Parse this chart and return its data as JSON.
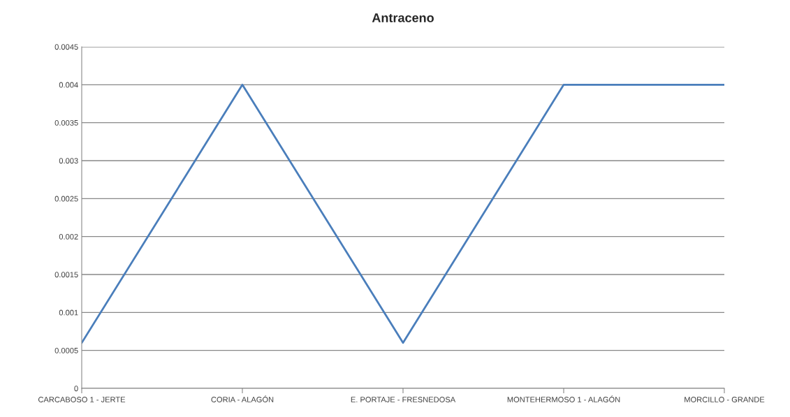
{
  "chart_data": {
    "type": "line",
    "title": "Antraceno",
    "categories": [
      "CARCABOSO 1 - JERTE",
      "CORIA - ALAGÓN",
      "E. PORTAJE - FRESNEDOSA",
      "MONTEHERMOSO 1 - ALAGÓN",
      "MORCILLO - GRANDE"
    ],
    "series": [
      {
        "color": "#4a7ebb",
        "values": [
          0.0006,
          0.004,
          0.0006,
          0.004,
          0.004
        ]
      }
    ],
    "ylim": [
      0,
      0.0045
    ],
    "yticks": [
      0,
      0.0005,
      0.001,
      0.0015,
      0.002,
      0.0025,
      0.003,
      0.0035,
      0.004,
      0.0045
    ],
    "grid": "y",
    "legend": false,
    "marker": "none",
    "line_style": "solid"
  }
}
